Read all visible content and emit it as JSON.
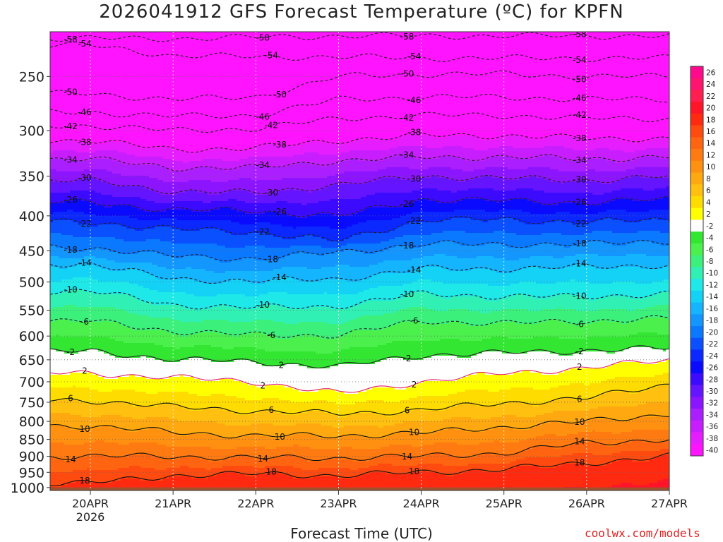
{
  "chart_data": {
    "type": "heatmap",
    "title": "2026041912 GFS Forecast Temperature (ºC) for KPFN",
    "xlabel": "Forecast Time (UTC)",
    "ylabel": "",
    "credit": "coolwx.com/models",
    "x_ticks": [
      "20APR",
      "21APR",
      "22APR",
      "23APR",
      "24APR",
      "25APR",
      "26APR",
      "27APR"
    ],
    "x_subtick": "2026",
    "y_ticks": [
      250,
      300,
      350,
      400,
      450,
      500,
      550,
      600,
      650,
      700,
      750,
      800,
      850,
      900,
      950,
      1000
    ],
    "y_range": [
      1010,
      215
    ],
    "y_scale": "log-pressure",
    "grid": true,
    "colorbar": {
      "position": "right",
      "levels": [
        26,
        24,
        22,
        20,
        18,
        16,
        14,
        12,
        10,
        8,
        6,
        4,
        2,
        -2,
        -4,
        -6,
        -8,
        -10,
        -12,
        -14,
        -16,
        -18,
        -20,
        -22,
        -24,
        -26,
        -28,
        -30,
        -32,
        -34,
        -36,
        -38,
        -40
      ],
      "colors": [
        "#ff0a8c",
        "#ff1470",
        "#ff1e50",
        "#ff1428",
        "#ff2a10",
        "#ff4a10",
        "#ff6410",
        "#ff7a10",
        "#ff9010",
        "#ffa810",
        "#ffc010",
        "#ffdc00",
        "#ffff00",
        "#ffffff",
        "#32e632",
        "#4cf04c",
        "#3cf07c",
        "#30f0b4",
        "#1ee8e8",
        "#14d2f5",
        "#14b4ff",
        "#1496ff",
        "#0a78ff",
        "#0a50ff",
        "#0a28ff",
        "#0a0aff",
        "#3c0aff",
        "#6414ff",
        "#8c14ff",
        "#aa1eff",
        "#c81eff",
        "#e61eff",
        "#ff14ff"
      ]
    },
    "isotherms": [
      {
        "value": -58,
        "pressure": [
          220,
          220,
          219,
          218,
          218,
          218,
          218,
          218
        ]
      },
      {
        "value": -54,
        "pressure": [
          225,
          233,
          234,
          234,
          235,
          235,
          235,
          235
        ]
      },
      {
        "value": -50,
        "pressure": [
          265,
          270,
          268,
          250,
          248,
          248,
          250,
          250
        ]
      },
      {
        "value": -46,
        "pressure": [
          282,
          286,
          285,
          270,
          268,
          268,
          270,
          270
        ]
      },
      {
        "value": -42,
        "pressure": [
          295,
          300,
          298,
          288,
          285,
          285,
          288,
          288
        ]
      },
      {
        "value": -38,
        "pressure": [
          310,
          320,
          318,
          310,
          305,
          305,
          308,
          308
        ]
      },
      {
        "value": -34,
        "pressure": [
          330,
          340,
          340,
          332,
          328,
          328,
          330,
          328
        ]
      },
      {
        "value": -30,
        "pressure": [
          355,
          368,
          370,
          360,
          350,
          352,
          355,
          350
        ]
      },
      {
        "value": -26,
        "pressure": [
          382,
          392,
          393,
          400,
          378,
          380,
          382,
          378
        ]
      },
      {
        "value": -22,
        "pressure": [
          408,
          418,
          422,
          435,
          405,
          405,
          408,
          405
        ]
      },
      {
        "value": -18,
        "pressure": [
          445,
          458,
          462,
          452,
          440,
          440,
          440,
          435
        ]
      },
      {
        "value": -14,
        "pressure": [
          470,
          495,
          498,
          495,
          478,
          478,
          475,
          472
        ]
      },
      {
        "value": -10,
        "pressure": [
          515,
          540,
          545,
          542,
          520,
          525,
          525,
          520
        ]
      },
      {
        "value": -6,
        "pressure": [
          570,
          590,
          598,
          598,
          570,
          575,
          570,
          565
        ]
      },
      {
        "value": -2,
        "pressure": [
          632,
          648,
          655,
          665,
          640,
          635,
          630,
          625
        ]
      },
      {
        "value": 2,
        "pressure": [
          680,
          690,
          700,
          728,
          700,
          680,
          668,
          650
        ]
      },
      {
        "value": 6,
        "pressure": [
          745,
          762,
          772,
          780,
          770,
          752,
          740,
          705
        ]
      },
      {
        "value": 10,
        "pressure": [
          812,
          830,
          840,
          840,
          832,
          815,
          800,
          780
        ]
      },
      {
        "value": 14,
        "pressure": [
          900,
          900,
          905,
          905,
          900,
          890,
          860,
          850
        ]
      },
      {
        "value": 18,
        "pressure": [
          985,
          960,
          955,
          960,
          950,
          940,
          920,
          900
        ]
      }
    ],
    "terrain_pressure": 1000
  }
}
